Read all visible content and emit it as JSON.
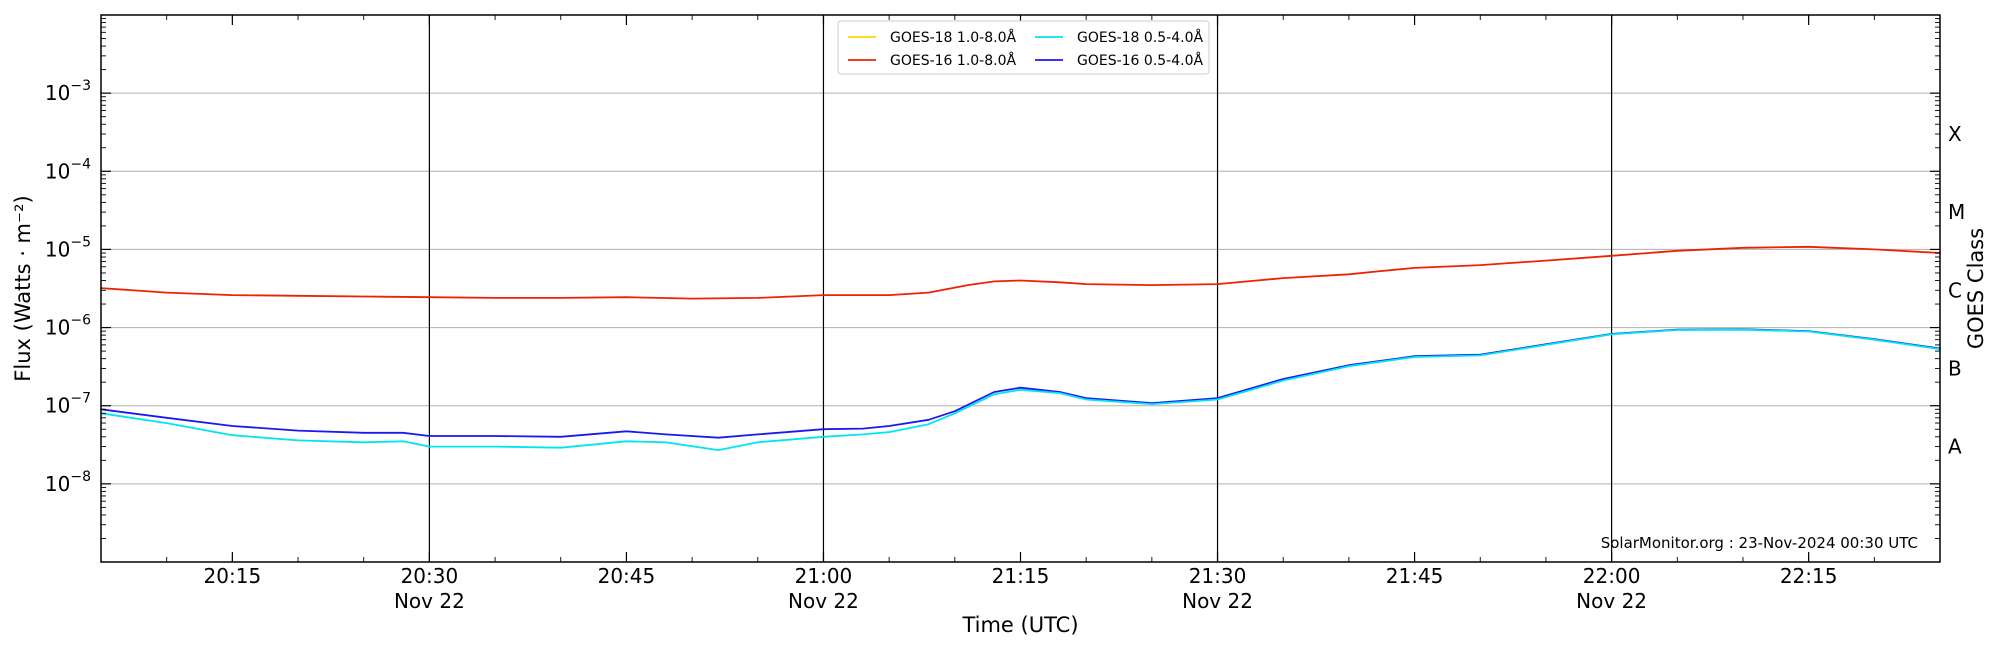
{
  "chart_data": {
    "type": "line",
    "xlabel": "Time (UTC)",
    "ylabel": "Flux (Watts · m⁻²)",
    "ylabel_right": "GOES Class",
    "y_scale": "log",
    "xlim": [
      "2024-11-22T20:05",
      "2024-11-22T22:25"
    ],
    "ylim": [
      1e-09,
      0.01
    ],
    "grid": "horizontal",
    "legend_placement": "top-center",
    "annotation": "SolarMonitor.org : 23-Nov-2024 00:30 UTC",
    "x_ticks": [
      {
        "t": "2024-11-22T20:15",
        "label": "20:15",
        "sub": ""
      },
      {
        "t": "2024-11-22T20:30",
        "label": "20:30",
        "sub": "Nov 22"
      },
      {
        "t": "2024-11-22T20:45",
        "label": "20:45",
        "sub": ""
      },
      {
        "t": "2024-11-22T21:00",
        "label": "21:00",
        "sub": "Nov 22"
      },
      {
        "t": "2024-11-22T21:15",
        "label": "21:15",
        "sub": ""
      },
      {
        "t": "2024-11-22T21:30",
        "label": "21:30",
        "sub": "Nov 22"
      },
      {
        "t": "2024-11-22T21:45",
        "label": "21:45",
        "sub": ""
      },
      {
        "t": "2024-11-22T22:00",
        "label": "22:00",
        "sub": "Nov 22"
      },
      {
        "t": "2024-11-22T22:15",
        "label": "22:15",
        "sub": ""
      }
    ],
    "y_ticks": [
      {
        "v": 1e-08,
        "base": "10",
        "exp": "−8"
      },
      {
        "v": 1e-07,
        "base": "10",
        "exp": "−7"
      },
      {
        "v": 1e-06,
        "base": "10",
        "exp": "−6"
      },
      {
        "v": 1e-05,
        "base": "10",
        "exp": "−5"
      },
      {
        "v": 0.0001,
        "base": "10",
        "exp": "−4"
      },
      {
        "v": 0.001,
        "base": "10",
        "exp": "−3"
      }
    ],
    "class_labels": [
      {
        "v": 0.0003,
        "label": "X"
      },
      {
        "v": 3e-05,
        "label": "M"
      },
      {
        "v": 3e-06,
        "label": "C"
      },
      {
        "v": 3e-07,
        "label": "B"
      },
      {
        "v": 3e-08,
        "label": "A"
      }
    ],
    "series": [
      {
        "name": "GOES-18 1.0-8.0Å",
        "color": "#ffd700",
        "x": [],
        "values": []
      },
      {
        "name": "GOES-16 1.0-8.0Å",
        "color": "#ee2200",
        "x": [
          "2024-11-22T20:05",
          "2024-11-22T20:10",
          "2024-11-22T20:15",
          "2024-11-22T20:20",
          "2024-11-22T20:25",
          "2024-11-22T20:30",
          "2024-11-22T20:35",
          "2024-11-22T20:40",
          "2024-11-22T20:45",
          "2024-11-22T20:50",
          "2024-11-22T20:55",
          "2024-11-22T21:00",
          "2024-11-22T21:05",
          "2024-11-22T21:08",
          "2024-11-22T21:11",
          "2024-11-22T21:13",
          "2024-11-22T21:15",
          "2024-11-22T21:18",
          "2024-11-22T21:20",
          "2024-11-22T21:25",
          "2024-11-22T21:30",
          "2024-11-22T21:33",
          "2024-11-22T21:35",
          "2024-11-22T21:40",
          "2024-11-22T21:42",
          "2024-11-22T21:45",
          "2024-11-22T21:50",
          "2024-11-22T21:55",
          "2024-11-22T22:00",
          "2024-11-22T22:05",
          "2024-11-22T22:10",
          "2024-11-22T22:15",
          "2024-11-22T22:20",
          "2024-11-22T22:25"
        ],
        "values": [
          3.2e-06,
          2.8e-06,
          2.6e-06,
          2.55e-06,
          2.5e-06,
          2.45e-06,
          2.4e-06,
          2.4e-06,
          2.45e-06,
          2.35e-06,
          2.4e-06,
          2.6e-06,
          2.6e-06,
          2.8e-06,
          3.5e-06,
          3.9e-06,
          4e-06,
          3.8e-06,
          3.6e-06,
          3.5e-06,
          3.6e-06,
          4e-06,
          4.3e-06,
          4.8e-06,
          5.2e-06,
          5.8e-06,
          6.3e-06,
          7.2e-06,
          8.3e-06,
          9.6e-06,
          1.05e-05,
          1.08e-05,
          1e-05,
          9e-06
        ]
      },
      {
        "name": "GOES-18 0.5-4.0Å",
        "color": "#00e5ee",
        "x": [
          "2024-11-22T20:05",
          "2024-11-22T20:10",
          "2024-11-22T20:15",
          "2024-11-22T20:20",
          "2024-11-22T20:25",
          "2024-11-22T20:28",
          "2024-11-22T20:30",
          "2024-11-22T20:35",
          "2024-11-22T20:40",
          "2024-11-22T20:45",
          "2024-11-22T20:48",
          "2024-11-22T20:52",
          "2024-11-22T20:55",
          "2024-11-22T21:00",
          "2024-11-22T21:03",
          "2024-11-22T21:05",
          "2024-11-22T21:08",
          "2024-11-22T21:10",
          "2024-11-22T21:13",
          "2024-11-22T21:15",
          "2024-11-22T21:18",
          "2024-11-22T21:20",
          "2024-11-22T21:25",
          "2024-11-22T21:30",
          "2024-11-22T21:35",
          "2024-11-22T21:40",
          "2024-11-22T21:45",
          "2024-11-22T21:50",
          "2024-11-22T21:55",
          "2024-11-22T22:00",
          "2024-11-22T22:05",
          "2024-11-22T22:10",
          "2024-11-22T22:15",
          "2024-11-22T22:20",
          "2024-11-22T22:25"
        ],
        "values": [
          8e-08,
          6e-08,
          4.2e-08,
          3.6e-08,
          3.4e-08,
          3.5e-08,
          3e-08,
          3e-08,
          2.9e-08,
          3.5e-08,
          3.4e-08,
          2.7e-08,
          3.4e-08,
          4e-08,
          4.3e-08,
          4.6e-08,
          5.8e-08,
          8e-08,
          1.4e-07,
          1.6e-07,
          1.45e-07,
          1.2e-07,
          1.05e-07,
          1.2e-07,
          2.1e-07,
          3.2e-07,
          4.2e-07,
          4.4e-07,
          6e-07,
          8.2e-07,
          9.3e-07,
          9.4e-07,
          8.9e-07,
          7e-07,
          5.3e-07
        ]
      },
      {
        "name": "GOES-16 0.5-4.0Å",
        "color": "#1a1aee",
        "x": [
          "2024-11-22T20:05",
          "2024-11-22T20:10",
          "2024-11-22T20:15",
          "2024-11-22T20:20",
          "2024-11-22T20:25",
          "2024-11-22T20:28",
          "2024-11-22T20:30",
          "2024-11-22T20:35",
          "2024-11-22T20:40",
          "2024-11-22T20:45",
          "2024-11-22T20:48",
          "2024-11-22T20:52",
          "2024-11-22T20:55",
          "2024-11-22T21:00",
          "2024-11-22T21:03",
          "2024-11-22T21:05",
          "2024-11-22T21:08",
          "2024-11-22T21:10",
          "2024-11-22T21:13",
          "2024-11-22T21:15",
          "2024-11-22T21:18",
          "2024-11-22T21:20",
          "2024-11-22T21:25",
          "2024-11-22T21:30",
          "2024-11-22T21:35",
          "2024-11-22T21:40",
          "2024-11-22T21:45",
          "2024-11-22T21:50",
          "2024-11-22T21:55",
          "2024-11-22T22:00",
          "2024-11-22T22:05",
          "2024-11-22T22:10",
          "2024-11-22T22:15",
          "2024-11-22T22:20",
          "2024-11-22T22:25"
        ],
        "values": [
          9e-08,
          7e-08,
          5.5e-08,
          4.8e-08,
          4.5e-08,
          4.5e-08,
          4.1e-08,
          4.1e-08,
          4e-08,
          4.7e-08,
          4.3e-08,
          3.9e-08,
          4.3e-08,
          5e-08,
          5.1e-08,
          5.5e-08,
          6.6e-08,
          8.5e-08,
          1.5e-07,
          1.7e-07,
          1.5e-07,
          1.25e-07,
          1.08e-07,
          1.25e-07,
          2.2e-07,
          3.3e-07,
          4.3e-07,
          4.5e-07,
          6.1e-07,
          8.3e-07,
          9.4e-07,
          9.5e-07,
          9e-07,
          7.1e-07,
          5.4e-07
        ]
      }
    ]
  }
}
